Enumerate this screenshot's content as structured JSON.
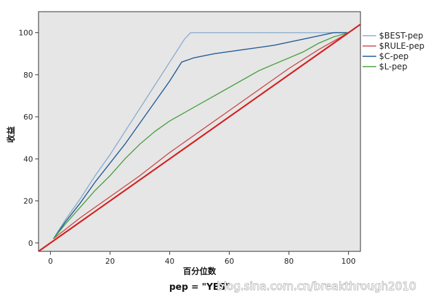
{
  "chart_data": {
    "type": "line",
    "title": "",
    "xlabel": "百分位数",
    "ylabel": "收益",
    "xlim": [
      -4,
      104
    ],
    "ylim": [
      -4,
      110
    ],
    "xticks": [
      0,
      20,
      40,
      60,
      80,
      100
    ],
    "yticks": [
      0,
      20,
      40,
      60,
      80,
      100
    ],
    "grid": false,
    "legend_position": "right",
    "series": [
      {
        "name": "$BEST-pep",
        "color": "#8aaed0",
        "x": [
          1,
          5,
          10,
          15,
          20,
          25,
          30,
          35,
          40,
          45,
          47,
          55,
          65,
          75,
          85,
          95,
          100
        ],
        "y": [
          2,
          11,
          21,
          32,
          42,
          53,
          64,
          75,
          86,
          97,
          100,
          100,
          100,
          100,
          100,
          100,
          100
        ]
      },
      {
        "name": "$RULE-pep",
        "color": "#c85050",
        "x": [
          1,
          10,
          20,
          30,
          40,
          50,
          60,
          70,
          80,
          90,
          100
        ],
        "y": [
          2,
          12,
          22,
          32,
          43,
          53,
          63,
          73,
          83,
          92,
          100
        ]
      },
      {
        "name": "$C-pep",
        "color": "#1f5a96",
        "x": [
          1,
          5,
          10,
          15,
          20,
          25,
          30,
          35,
          40,
          44,
          48,
          55,
          65,
          75,
          85,
          95,
          100
        ],
        "y": [
          2,
          10,
          19,
          29,
          38,
          47,
          57,
          67,
          77,
          86,
          88,
          90,
          92,
          94,
          97,
          100,
          100
        ]
      },
      {
        "name": "$L-pep",
        "color": "#4aa040",
        "x": [
          1,
          5,
          10,
          15,
          20,
          25,
          30,
          35,
          40,
          45,
          50,
          55,
          60,
          65,
          70,
          75,
          80,
          85,
          90,
          95,
          100
        ],
        "y": [
          2,
          9,
          17,
          25,
          32,
          40,
          47,
          53,
          58,
          62,
          66,
          70,
          74,
          78,
          82,
          85,
          88,
          91,
          95,
          98,
          100
        ]
      },
      {
        "name": "",
        "color": "#d42020",
        "x": [
          -4,
          104
        ],
        "y": [
          -4,
          104
        ]
      }
    ]
  },
  "footer": {
    "label": "pep = \"YES\"",
    "watermark": "blog.sina.com.cn/breakthrough2010"
  },
  "colors": {
    "plot_background": "#e6e6e6",
    "frame": "#333333"
  }
}
